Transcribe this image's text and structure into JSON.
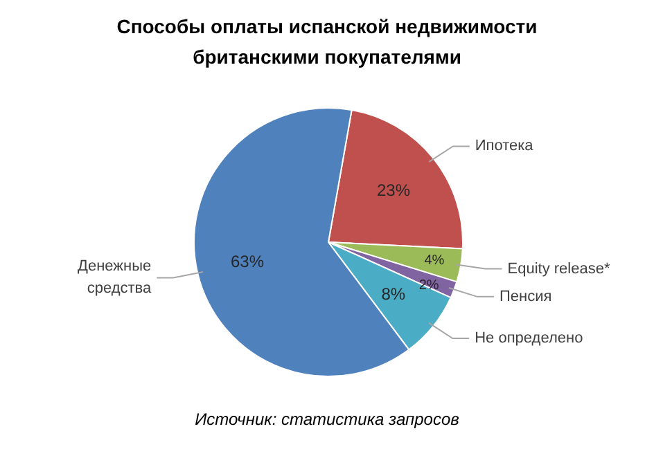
{
  "chart_data": {
    "type": "pie",
    "title": "Способы оплаты испанской недвижимости британскими покупателями",
    "categories": [
      "Ипотека",
      "Equity release*",
      "Пенсия",
      "Не определено",
      "Денежные средства"
    ],
    "values": [
      23,
      4,
      2,
      8,
      63
    ],
    "value_labels": [
      "23%",
      "4%",
      "2%",
      "8%",
      "63%"
    ],
    "colors": [
      "#c0504d",
      "#9bbb59",
      "#8064a2",
      "#4bacc6",
      "#4f81bd"
    ],
    "annotations": [
      "Источник: статистика запросов"
    ]
  }
}
